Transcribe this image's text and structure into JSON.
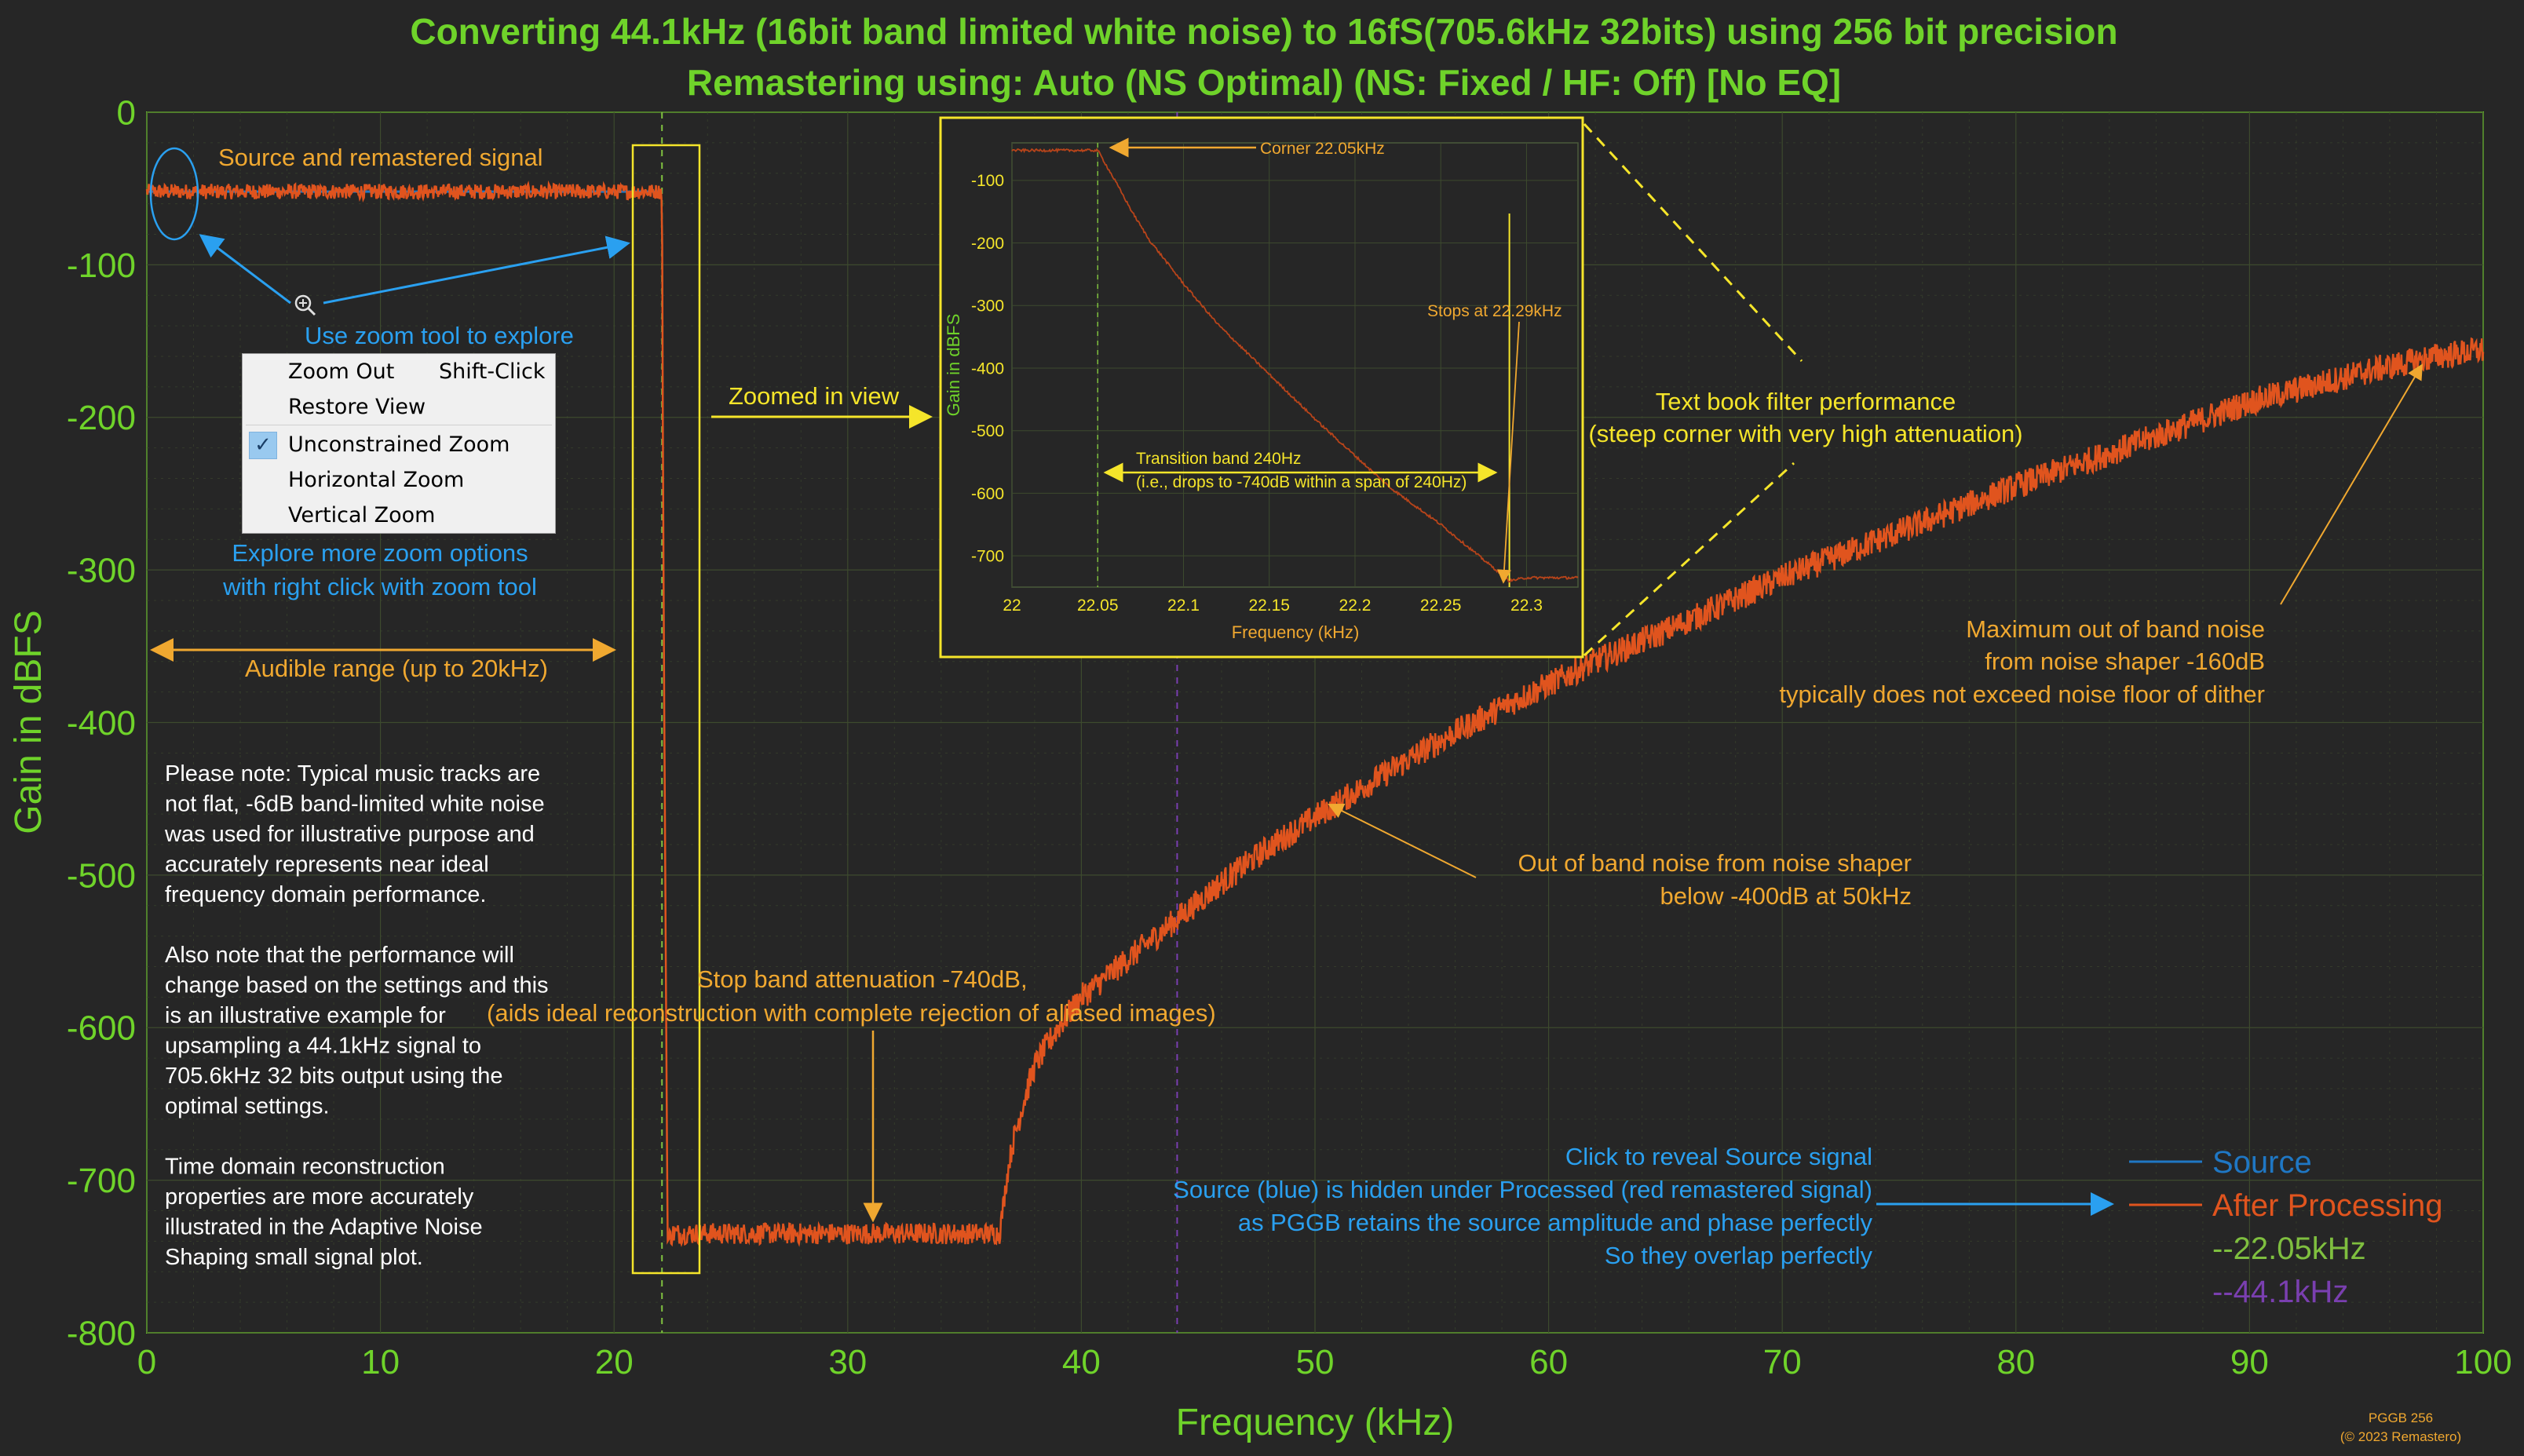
{
  "title": {
    "line1": "Converting 44.1kHz (16bit band limited white noise) to 16fS(705.6kHz 32bits) using 256 bit precision",
    "line2": "Remastering using: Auto (NS Optimal) (NS: Fixed / HF: Off) [No EQ]"
  },
  "colors": {
    "background": "#262626",
    "title": "#6fd32a",
    "axis": "#6fd32a",
    "grid": "#3d4a2e",
    "processed": "#e0541e",
    "source": "#1f77c4",
    "annotation_orange": "#f0a830",
    "annotation_yellow": "#f5e52a",
    "annotation_blue": "#2aa0f0",
    "note_text": "#ffffff",
    "marker_22": "#7fbf3f",
    "marker_44": "#7a3fb0"
  },
  "chart_data": [
    {
      "type": "line",
      "xlabel": "Frequency (kHz)",
      "ylabel": "Gain in dBFS",
      "xlim": [
        0,
        100
      ],
      "ylim": [
        -800,
        0
      ],
      "xticks": [
        "0",
        "10",
        "20",
        "30",
        "40",
        "50",
        "60",
        "70",
        "80",
        "90",
        "100"
      ],
      "yticks": [
        "0",
        "-100",
        "-200",
        "-300",
        "-400",
        "-500",
        "-600",
        "-700",
        "-800"
      ],
      "grid": true,
      "legend_position": "bottom-right",
      "series": [
        {
          "name": "Source",
          "x": [
            0,
            22.05
          ],
          "y": [
            -52,
            -52
          ]
        },
        {
          "name": "After Processing",
          "x": [
            0,
            1,
            5,
            10,
            15,
            20,
            21.9,
            22.05,
            22.1,
            22.15,
            22.2,
            22.25,
            22.29,
            22.5,
            25,
            30,
            36.5,
            36.8,
            37,
            37.5,
            38,
            39,
            40,
            42,
            44,
            46,
            48,
            50,
            52,
            55,
            58,
            60,
            62,
            65,
            70,
            75,
            80,
            85,
            90,
            95,
            98,
            100
          ],
          "y": [
            -52,
            -52,
            -52,
            -52,
            -52,
            -52,
            -52,
            -52,
            -250,
            -400,
            -520,
            -640,
            -740,
            -735,
            -735,
            -735,
            -735,
            -700,
            -680,
            -650,
            -625,
            -600,
            -580,
            -555,
            -530,
            -505,
            -482,
            -462,
            -443,
            -415,
            -390,
            -375,
            -360,
            -340,
            -305,
            -275,
            -245,
            -218,
            -190,
            -170,
            -160,
            -156
          ]
        },
        {
          "name": "--22.05kHz",
          "x": [
            22.05,
            22.05
          ],
          "y": [
            0,
            -800
          ]
        },
        {
          "name": "--44.1kHz",
          "x": [
            44.1,
            44.1
          ],
          "y": [
            0,
            -800
          ]
        }
      ]
    },
    {
      "type": "line",
      "xlabel": "Frequency (kHz)",
      "ylabel": "Gain in dBFS",
      "xlim": [
        22,
        22.33
      ],
      "ylim": [
        -750,
        -40
      ],
      "xticks": [
        "22",
        "22.05",
        "22.1",
        "22.15",
        "22.2",
        "22.25",
        "22.3"
      ],
      "yticks": [
        "-100",
        "-200",
        "-300",
        "-400",
        "-500",
        "-600",
        "-700"
      ],
      "grid": true,
      "series": [
        {
          "name": "After Processing",
          "x": [
            22,
            22.02,
            22.05,
            22.06,
            22.07,
            22.08,
            22.1,
            22.12,
            22.15,
            22.18,
            22.2,
            22.22,
            22.25,
            22.27,
            22.29,
            22.3,
            22.33
          ],
          "y": [
            -52,
            -52,
            -52,
            -100,
            -150,
            -195,
            -265,
            -330,
            -410,
            -490,
            -540,
            -590,
            -650,
            -695,
            -740,
            -735,
            -735
          ]
        }
      ]
    }
  ],
  "inset": {
    "corner_label": "Corner 22.05kHz",
    "stops_label": "Stops at 22.29kHz",
    "transition_line1": "Transition band 240Hz",
    "transition_line2": "(i.e., drops to -740dB within a span of 240Hz)"
  },
  "annotations": {
    "source_remastered": "Source and remastered signal",
    "zoom_tool": "Use zoom tool to explore",
    "zoom_more_line1": "Explore more zoom options",
    "zoom_more_line2": "with right click with zoom tool",
    "audible_range": "Audible range (up to 20kHz)",
    "zoomed_in_view": "Zoomed in view",
    "textbook_line1": "Text book filter performance",
    "textbook_line2": "(steep corner with very high attenuation)",
    "max_noise_line1": "Maximum out of band noise",
    "max_noise_line2": "from noise shaper -160dB",
    "max_noise_line3": "typically does not exceed noise floor of  dither",
    "oob_noise_line1": "Out of band noise from noise shaper",
    "oob_noise_line2": "below -400dB at 50kHz",
    "stop_band_line1": "Stop band attenuation -740dB,",
    "stop_band_line2": "(aids ideal reconstruction with complete rejection of aliased images)",
    "reveal_line1": "Click to reveal Source signal",
    "reveal_line2": "Source (blue) is hidden under Processed (red remastered signal)",
    "reveal_line3": "as PGGB retains the source amplitude and phase perfectly",
    "reveal_line4": "So they overlap perfectly",
    "note": [
      "Please note: Typical  music tracks are",
      "not flat, -6dB  band-limited white noise",
      "was used for illustrative purpose and",
      "accurately represents near ideal",
      "frequency domain performance.",
      "",
      "Also note that the performance will",
      "change based on the settings and this",
      "is an illustrative example for",
      "upsampling a 44.1kHz signal to",
      "705.6kHz 32 bits output using the",
      "optimal settings.",
      "",
      "Time domain reconstruction",
      "properties are more accurately",
      "illustrated in the Adaptive Noise",
      "Shaping small signal plot."
    ],
    "watermark_line1": "PGGB 256",
    "watermark_line2": "(© 2023 Remastero)"
  },
  "context_menu": {
    "items": [
      {
        "label": "Zoom Out",
        "shortcut": "Shift-Click",
        "checked": false
      },
      {
        "label": "Restore View",
        "shortcut": "",
        "checked": false
      },
      {
        "label": "Unconstrained Zoom",
        "shortcut": "",
        "checked": true
      },
      {
        "label": "Horizontal Zoom",
        "shortcut": "",
        "checked": false
      },
      {
        "label": "Vertical Zoom",
        "shortcut": "",
        "checked": false
      }
    ]
  }
}
